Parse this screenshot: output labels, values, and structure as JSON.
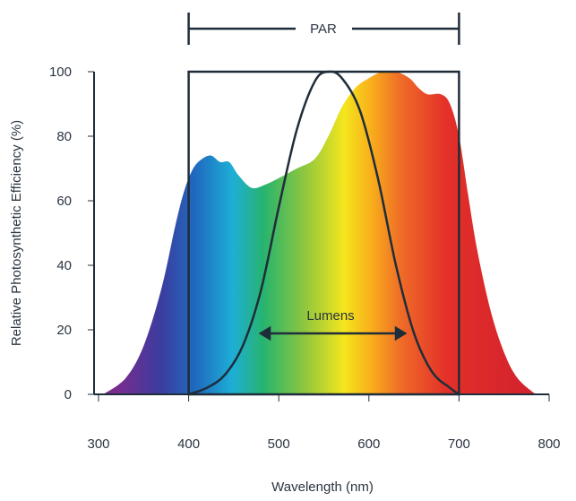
{
  "chart_data": {
    "type": "area",
    "xlabel": "Wavelength (nm)",
    "ylabel": "Relative Photosynthetic Efficiency (%)",
    "xlim": [
      300,
      800
    ],
    "ylim": [
      0,
      100
    ],
    "x_ticks": [
      "300",
      "400",
      "500",
      "600",
      "700",
      "800"
    ],
    "y_ticks": [
      "0",
      "20",
      "40",
      "60",
      "80",
      "100"
    ],
    "grid": false,
    "series": [
      {
        "name": "Relative Photosynthetic Efficiency",
        "x": [
          305,
          330,
          350,
          370,
          385,
          395,
          405,
          415,
          425,
          435,
          445,
          455,
          470,
          485,
          500,
          520,
          540,
          555,
          570,
          585,
          600,
          615,
          630,
          645,
          655,
          665,
          680,
          690,
          700,
          710,
          720,
          735,
          750,
          765,
          785
        ],
        "y": [
          0,
          5,
          15,
          33,
          52,
          63,
          70,
          73,
          74,
          72,
          72,
          68,
          64,
          65,
          67,
          70,
          73,
          80,
          89,
          95,
          98,
          100,
          100,
          98,
          95,
          93,
          93,
          90,
          80,
          62,
          45,
          26,
          13,
          5,
          0
        ]
      },
      {
        "name": "Lumens",
        "x": [
          400,
          420,
          440,
          460,
          480,
          500,
          520,
          540,
          555,
          570,
          590,
          610,
          630,
          650,
          670,
          690,
          700
        ],
        "y": [
          0,
          2,
          6,
          15,
          32,
          58,
          82,
          97,
          100,
          98,
          88,
          67,
          40,
          19,
          7,
          2,
          0
        ]
      }
    ],
    "annotations": {
      "par": "PAR",
      "par_range": [
        400,
        700
      ],
      "lumens": "Lumens",
      "lumens_arrow": [
        480,
        640
      ]
    }
  }
}
